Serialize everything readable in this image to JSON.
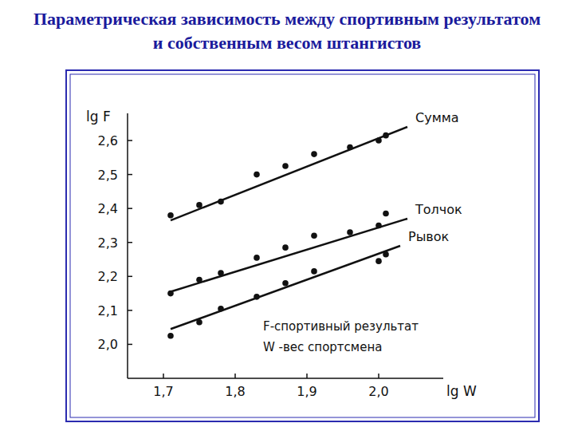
{
  "chart_data": {
    "type": "scatter",
    "title": "Параметрическая зависимость между спортивным результатом и собственным весом штангистов",
    "x_label": "lg W",
    "y_label": "lg F",
    "annotations": [
      "F-спортивный результат",
      "W -вес спортсмена"
    ],
    "xlim": [
      1.65,
      2.09
    ],
    "ylim": [
      1.9,
      2.68
    ],
    "xticks": [
      {
        "value": 1.7,
        "label": "1,7"
      },
      {
        "value": 1.8,
        "label": "1,8"
      },
      {
        "value": 1.9,
        "label": "1,9"
      },
      {
        "value": 2.0,
        "label": "2,0"
      }
    ],
    "yticks": [
      {
        "value": 2.0,
        "label": "2,0"
      },
      {
        "value": 2.1,
        "label": "2,1"
      },
      {
        "value": 2.2,
        "label": "2,2"
      },
      {
        "value": 2.3,
        "label": "2,3"
      },
      {
        "value": 2.4,
        "label": "2,4"
      },
      {
        "value": 2.5,
        "label": "2,5"
      },
      {
        "value": 2.6,
        "label": "2,6"
      }
    ],
    "grid": false,
    "color": "#111111",
    "marker": "circle",
    "series": [
      {
        "name": "Сумма",
        "x": [
          1.71,
          1.75,
          1.78,
          1.83,
          1.87,
          1.91,
          1.96,
          2.0,
          2.01
        ],
        "values": [
          2.38,
          2.41,
          2.42,
          2.5,
          2.525,
          2.56,
          2.58,
          2.6,
          2.615
        ],
        "line": {
          "x": [
            1.71,
            2.04
          ],
          "values": [
            2.365,
            2.64
          ]
        }
      },
      {
        "name": "Толчок",
        "x": [
          1.71,
          1.75,
          1.78,
          1.83,
          1.87,
          1.91,
          1.96,
          2.0,
          2.01
        ],
        "values": [
          2.15,
          2.19,
          2.21,
          2.255,
          2.285,
          2.32,
          2.33,
          2.35,
          2.385
        ],
        "line": {
          "x": [
            1.71,
            2.04
          ],
          "values": [
            2.155,
            2.37
          ]
        }
      },
      {
        "name": "Рывок",
        "x": [
          1.71,
          1.75,
          1.78,
          1.83,
          1.87,
          1.91,
          2.0,
          2.01
        ],
        "values": [
          2.025,
          2.065,
          2.105,
          2.14,
          2.18,
          2.215,
          2.245,
          2.265
        ],
        "line": {
          "x": [
            1.71,
            2.03
          ],
          "values": [
            2.045,
            2.29
          ]
        }
      }
    ]
  }
}
